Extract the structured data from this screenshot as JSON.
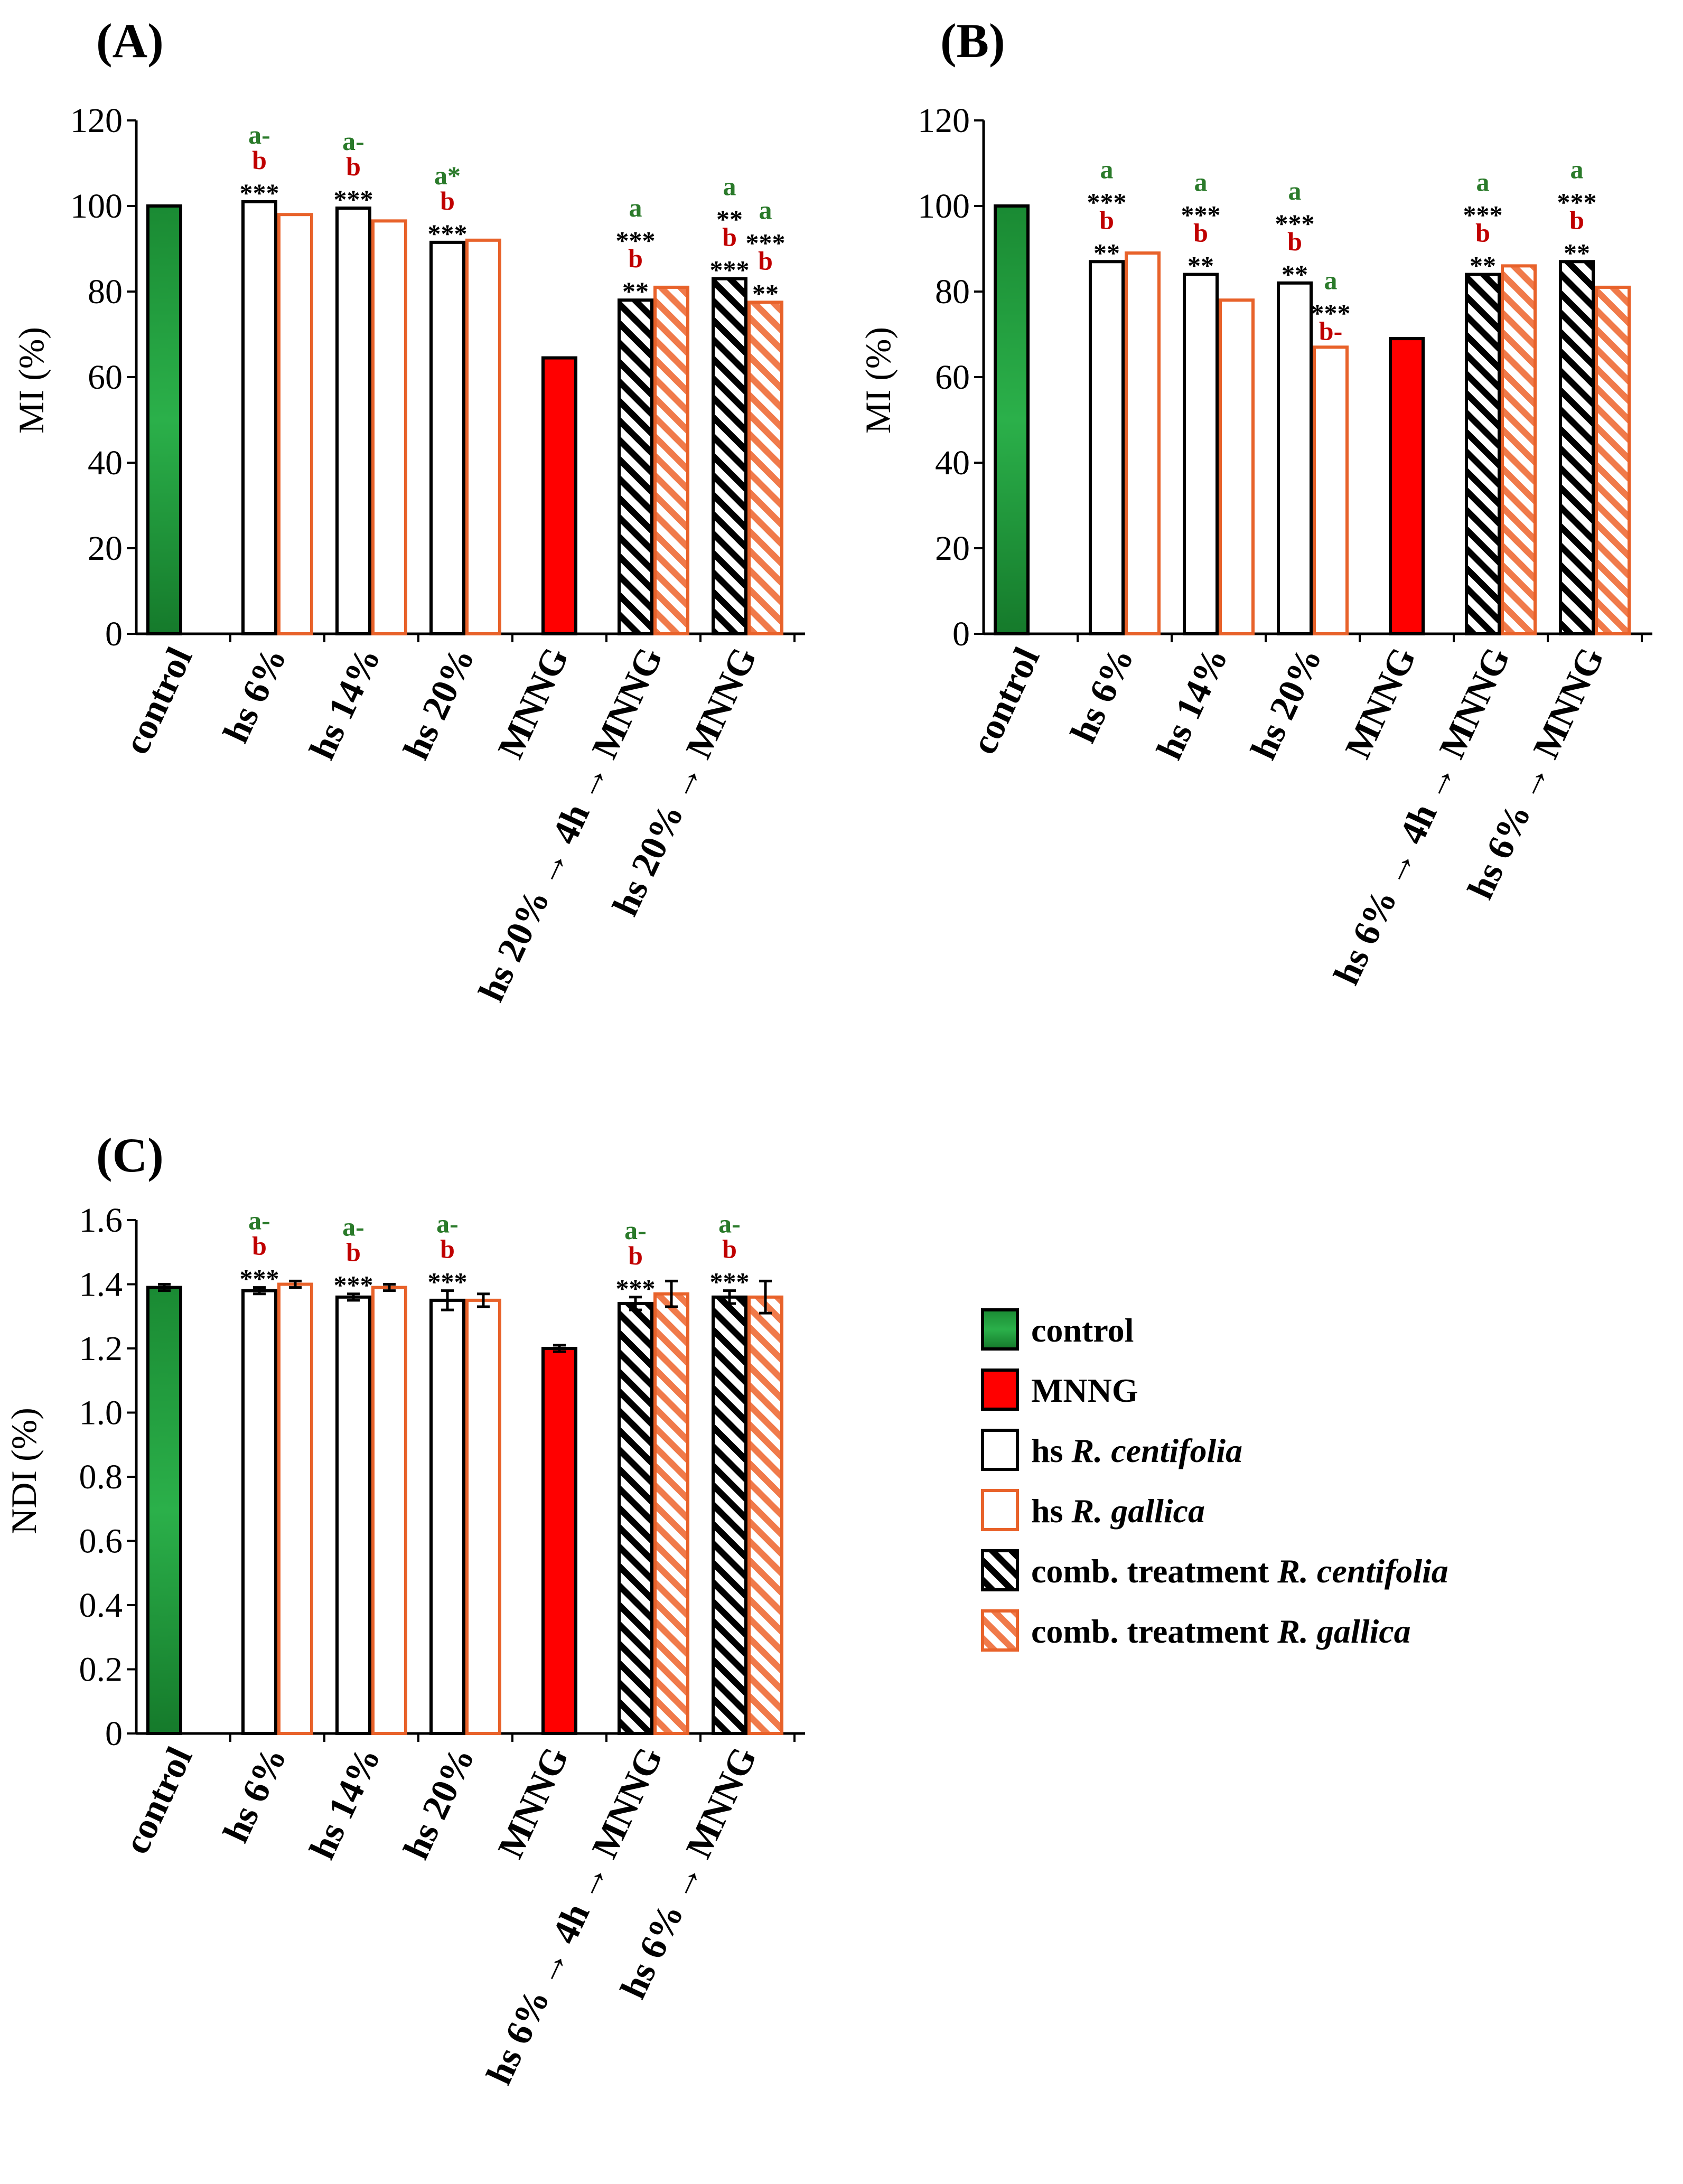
{
  "chart_data": [
    {
      "panel": "(A)",
      "type": "bar",
      "ylabel": "MI (%)",
      "ylim": [
        0,
        120
      ],
      "yticks": [
        "0",
        "20",
        "40",
        "60",
        "80",
        "100",
        "120"
      ],
      "categories": [
        "control",
        "hs 6%",
        "hs 14%",
        "hs 20%",
        "MNNG",
        "hs 20% → 4h → MNNG",
        "hs 20% → MNNG"
      ],
      "bars": [
        {
          "group": 0,
          "style": "control",
          "value": 100,
          "ann": []
        },
        {
          "group": 1,
          "style": "hs_centifolia",
          "value": 101,
          "ann": [
            "***",
            "b",
            "a-"
          ]
        },
        {
          "group": 1,
          "style": "hs_gallica",
          "value": 98,
          "ann": []
        },
        {
          "group": 2,
          "style": "hs_centifolia",
          "value": 99.5,
          "ann": [
            "***",
            "b",
            "a-"
          ]
        },
        {
          "group": 2,
          "style": "hs_gallica",
          "value": 96.5,
          "ann": []
        },
        {
          "group": 3,
          "style": "hs_centifolia",
          "value": 91.5,
          "ann": [
            "***",
            "b",
            "a*"
          ]
        },
        {
          "group": 3,
          "style": "hs_gallica",
          "value": 92,
          "ann": []
        },
        {
          "group": 4,
          "style": "mnng",
          "value": 64.5,
          "ann": []
        },
        {
          "group": 5,
          "style": "comb_centifolia",
          "value": 78,
          "ann": [
            "**",
            "b",
            "***",
            "a"
          ]
        },
        {
          "group": 5,
          "style": "comb_gallica",
          "value": 81,
          "ann": []
        },
        {
          "group": 6,
          "style": "comb_centifolia",
          "value": 83,
          "ann": [
            "***",
            "b",
            "**",
            "a"
          ]
        },
        {
          "group": 6,
          "style": "comb_gallica",
          "value": 77.5,
          "ann": [
            "**",
            "b",
            "***",
            "a"
          ]
        }
      ]
    },
    {
      "panel": "(B)",
      "type": "bar",
      "ylabel": "MI (%)",
      "ylim": [
        0,
        120
      ],
      "yticks": [
        "0",
        "20",
        "40",
        "60",
        "80",
        "100",
        "120"
      ],
      "categories": [
        "control",
        "hs 6%",
        "hs 14%",
        "hs 20%",
        "MNNG",
        "hs 6% → 4h → MNNG",
        "hs 6% → MNNG"
      ],
      "bars": [
        {
          "group": 0,
          "style": "control",
          "value": 100,
          "ann": []
        },
        {
          "group": 1,
          "style": "hs_centifolia",
          "value": 87,
          "ann": [
            "**",
            "b",
            "***",
            "a"
          ]
        },
        {
          "group": 1,
          "style": "hs_gallica",
          "value": 89,
          "ann": []
        },
        {
          "group": 2,
          "style": "hs_centifolia",
          "value": 84,
          "ann": [
            "**",
            "b",
            "***",
            "a"
          ]
        },
        {
          "group": 2,
          "style": "hs_gallica",
          "value": 78,
          "ann": []
        },
        {
          "group": 3,
          "style": "hs_centifolia",
          "value": 82,
          "ann": [
            "**",
            "b",
            "***",
            "a"
          ]
        },
        {
          "group": 3,
          "style": "hs_gallica",
          "value": 67,
          "ann": [
            "b-",
            "***",
            "a"
          ]
        },
        {
          "group": 4,
          "style": "mnng",
          "value": 69,
          "ann": []
        },
        {
          "group": 5,
          "style": "comb_centifolia",
          "value": 84,
          "ann": [
            "**",
            "b",
            "***",
            "a"
          ]
        },
        {
          "group": 5,
          "style": "comb_gallica",
          "value": 86,
          "ann": []
        },
        {
          "group": 6,
          "style": "comb_centifolia",
          "value": 87,
          "ann": [
            "**",
            "b",
            "***",
            "a"
          ]
        },
        {
          "group": 6,
          "style": "comb_gallica",
          "value": 81,
          "ann": []
        }
      ]
    },
    {
      "panel": "(C)",
      "type": "bar",
      "ylabel": "NDI (%)",
      "ylim": [
        0,
        1.6
      ],
      "yticks": [
        "0",
        "0.2",
        "0.4",
        "0.6",
        "0.8",
        "1.0",
        "1.2",
        "1.4",
        "1.6"
      ],
      "categories": [
        "control",
        "hs 6%",
        "hs 14%",
        "hs 20%",
        "MNNG",
        "hs 6% → 4h → MNNG",
        "hs 6% → MNNG"
      ],
      "bars": [
        {
          "group": 0,
          "style": "control",
          "value": 1.39,
          "err": 0.01,
          "ann": []
        },
        {
          "group": 1,
          "style": "hs_centifolia",
          "value": 1.38,
          "err": 0.01,
          "ann": [
            "***",
            "b",
            "a-"
          ]
        },
        {
          "group": 1,
          "style": "hs_gallica",
          "value": 1.4,
          "err": 0.01,
          "ann": []
        },
        {
          "group": 2,
          "style": "hs_centifolia",
          "value": 1.36,
          "err": 0.01,
          "ann": [
            "***",
            "b",
            "a-"
          ]
        },
        {
          "group": 2,
          "style": "hs_gallica",
          "value": 1.39,
          "err": 0.01,
          "ann": []
        },
        {
          "group": 3,
          "style": "hs_centifolia",
          "value": 1.35,
          "err": 0.03,
          "ann": [
            "***",
            "b",
            "a-"
          ]
        },
        {
          "group": 3,
          "style": "hs_gallica",
          "value": 1.35,
          "err": 0.02,
          "ann": []
        },
        {
          "group": 4,
          "style": "mnng",
          "value": 1.2,
          "err": 0.01,
          "ann": []
        },
        {
          "group": 5,
          "style": "comb_centifolia",
          "value": 1.34,
          "err": 0.02,
          "ann": [
            "***",
            "b",
            "a-"
          ]
        },
        {
          "group": 5,
          "style": "comb_gallica",
          "value": 1.37,
          "err": 0.04,
          "ann": []
        },
        {
          "group": 6,
          "style": "comb_centifolia",
          "value": 1.36,
          "err": 0.02,
          "ann": [
            "***",
            "b",
            "a-"
          ]
        },
        {
          "group": 6,
          "style": "comb_gallica",
          "value": 1.36,
          "err": 0.05,
          "ann": []
        }
      ]
    }
  ],
  "legend": [
    {
      "style": "control",
      "text": "control",
      "italic": ""
    },
    {
      "style": "mnng",
      "text": "MNNG",
      "italic": ""
    },
    {
      "style": "hs_centifolia",
      "text": "hs ",
      "italic": "R. centifolia"
    },
    {
      "style": "hs_gallica",
      "text": "hs ",
      "italic": "R. gallica"
    },
    {
      "style": "comb_centifolia",
      "text": "comb. treatment ",
      "italic": "R. centifolia"
    },
    {
      "style": "comb_gallica",
      "text": "comb. treatment ",
      "italic": "R. gallica"
    }
  ],
  "colors": {
    "control_fill": "#1f9a3a",
    "control_light": "#3dba5c",
    "mnng": "#ff0000",
    "black": "#000000",
    "orange": "#e8622a",
    "orange_hatch": "#f07a4a",
    "green_text": "#2a7a2a",
    "red_text": "#c00000"
  }
}
